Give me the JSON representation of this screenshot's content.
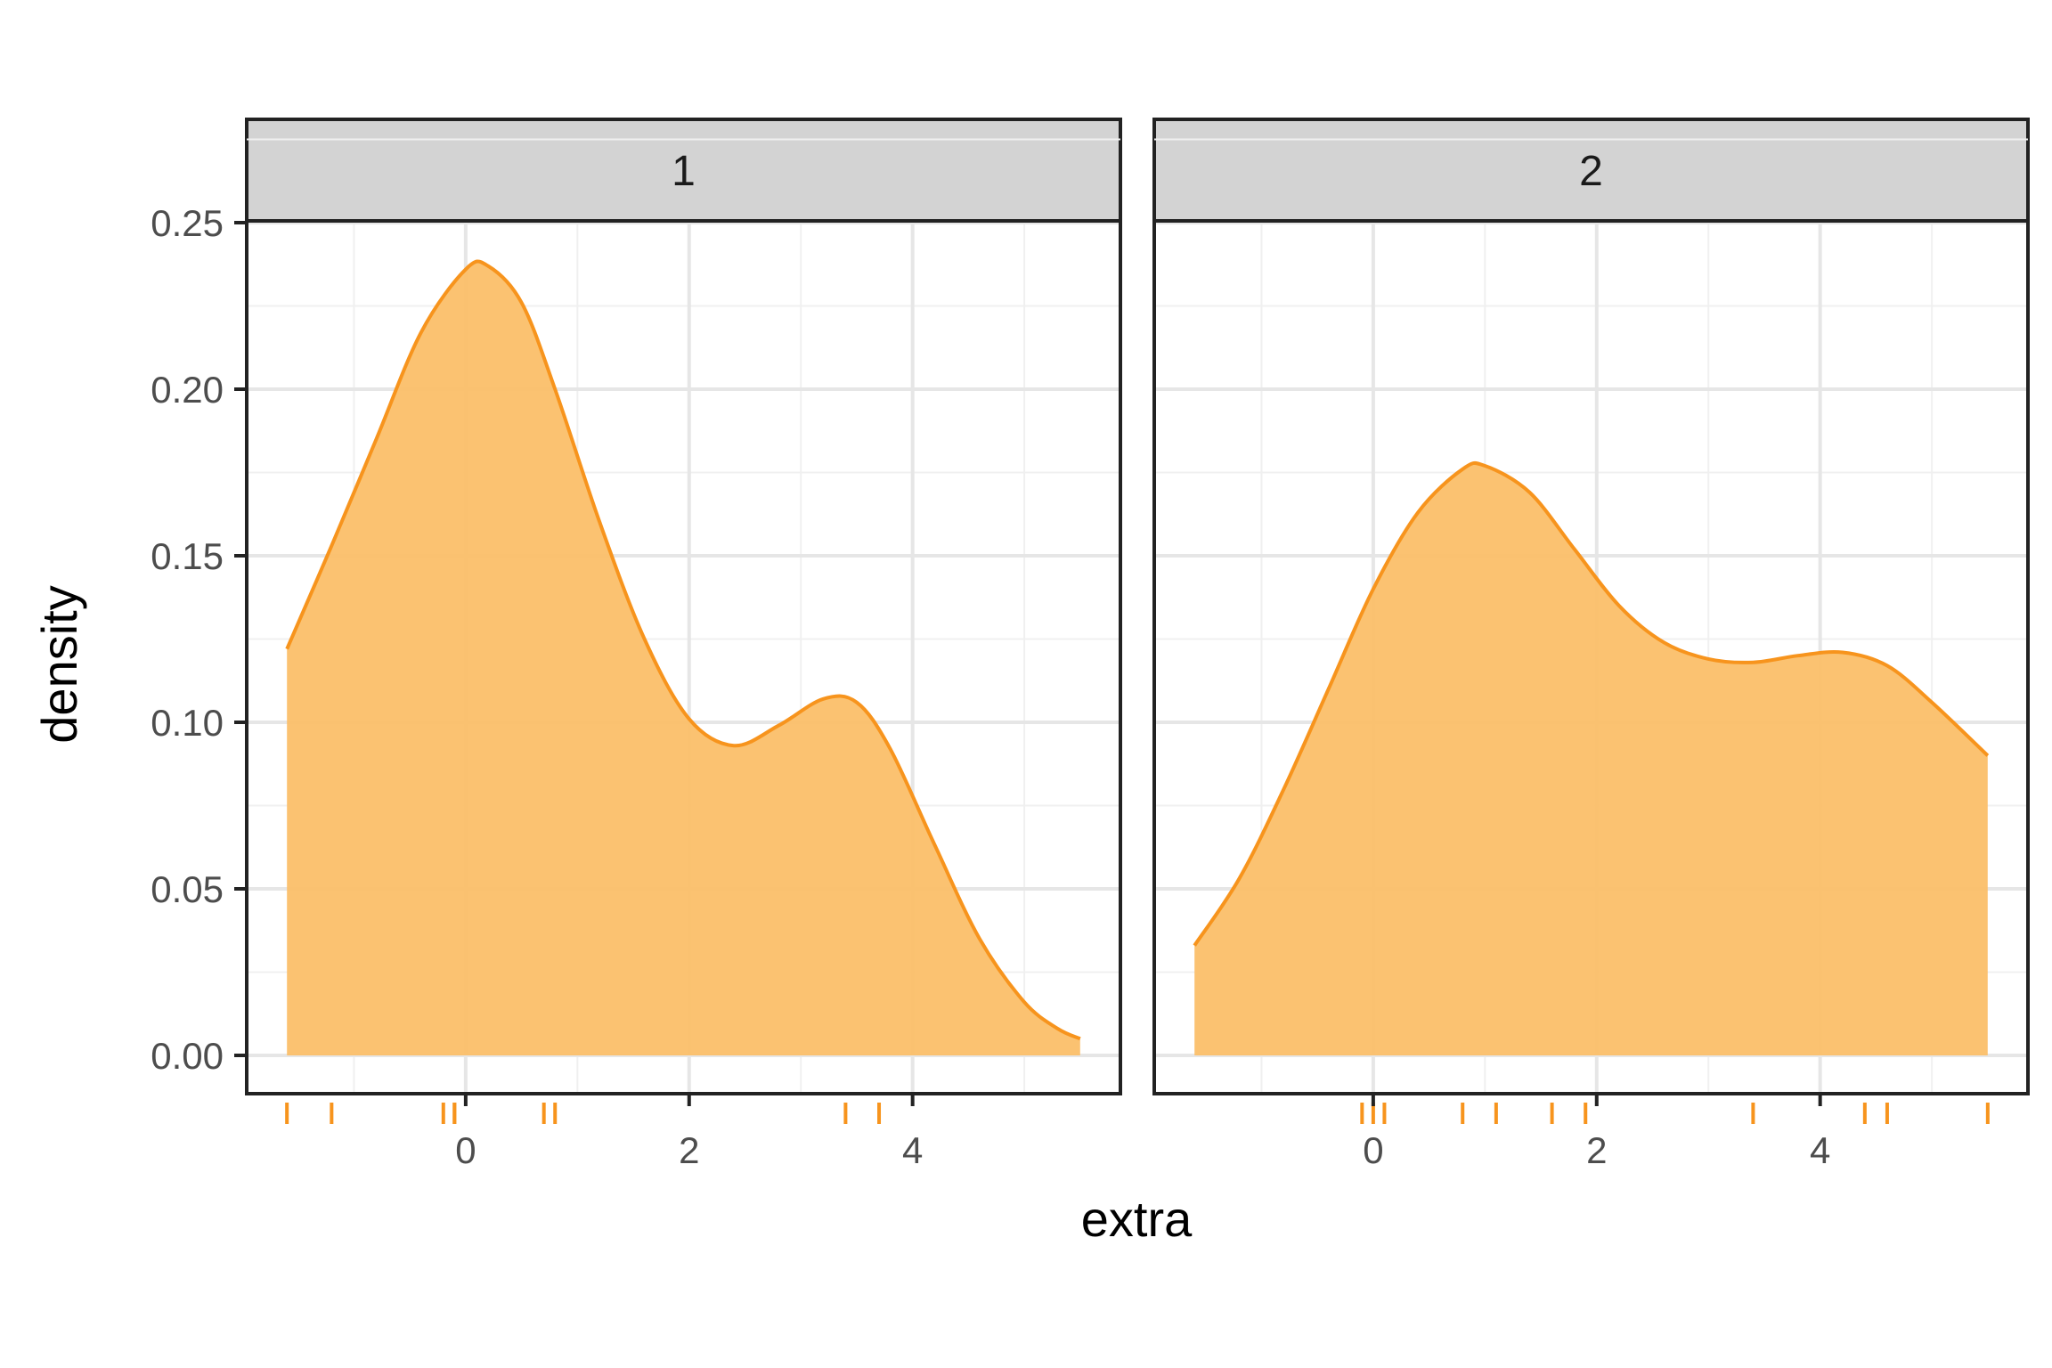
{
  "chart_data": {
    "type": "area",
    "kind": "faceted density with rug",
    "title": "",
    "xlabel": "extra",
    "ylabel": "density",
    "ylim": [
      0,
      0.275
    ],
    "y_ticks": [
      0.0,
      0.05,
      0.1,
      0.15,
      0.2,
      0.25
    ],
    "y_tick_labels": [
      "0.00",
      "0.05",
      "0.10",
      "0.15",
      "0.20",
      "0.25"
    ],
    "x_ticks": [
      0,
      2,
      4
    ],
    "x_tick_labels": [
      "0",
      "2",
      "4"
    ],
    "grid": true,
    "legend": "none",
    "colors": {
      "fill": "#fbbf69",
      "line": "#f7941d",
      "rug": "#f7941d",
      "strip": "#d3d3d3",
      "grid": "#e6e6e6",
      "border": "#222222"
    },
    "panels": [
      {
        "strip_label": "1",
        "xlim": [
          -1.96,
          5.86
        ],
        "density": {
          "x": [
            -1.6,
            -1.2,
            -0.8,
            -0.4,
            0.0,
            0.2,
            0.5,
            0.8,
            1.2,
            1.6,
            2.0,
            2.4,
            2.8,
            3.2,
            3.5,
            3.8,
            4.2,
            4.6,
            5.0,
            5.3,
            5.5
          ],
          "y": [
            0.122,
            0.153,
            0.185,
            0.217,
            0.236,
            0.237,
            0.226,
            0.2,
            0.16,
            0.125,
            0.101,
            0.093,
            0.099,
            0.107,
            0.106,
            0.092,
            0.063,
            0.035,
            0.016,
            0.008,
            0.005
          ]
        },
        "rug": [
          -1.6,
          -1.2,
          -0.2,
          -0.1,
          -0.1,
          0.7,
          0.8,
          3.4,
          3.7
        ]
      },
      {
        "strip_label": "2",
        "xlim": [
          -1.96,
          5.86
        ],
        "density": {
          "x": [
            -1.6,
            -1.2,
            -0.8,
            -0.4,
            0.0,
            0.4,
            0.8,
            1.0,
            1.4,
            1.8,
            2.2,
            2.6,
            3.0,
            3.4,
            3.8,
            4.2,
            4.6,
            5.0,
            5.5
          ],
          "y": [
            0.033,
            0.053,
            0.08,
            0.11,
            0.14,
            0.163,
            0.176,
            0.177,
            0.169,
            0.152,
            0.135,
            0.124,
            0.119,
            0.118,
            0.12,
            0.121,
            0.117,
            0.106,
            0.09
          ]
        },
        "rug": [
          -0.1,
          0.0,
          0.1,
          0.8,
          1.1,
          1.6,
          1.9,
          3.4,
          4.4,
          4.6,
          5.5
        ]
      }
    ]
  }
}
